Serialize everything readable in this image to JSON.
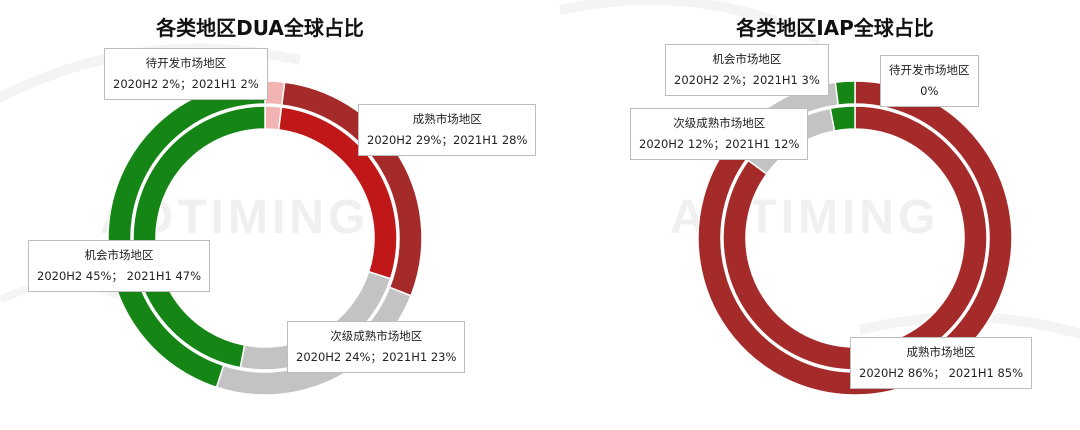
{
  "watermark": "ADTIMING",
  "chart_data": [
    {
      "type": "pie",
      "title": "各类地区DUA全球占比",
      "categories": [
        "待开发市场地区",
        "成熟市场地区",
        "次级成熟市场地区",
        "机会市场地区"
      ],
      "series": [
        {
          "name": "2020H2",
          "values": [
            2,
            29,
            24,
            45
          ]
        },
        {
          "name": "2021H1",
          "values": [
            2,
            28,
            23,
            47
          ]
        }
      ],
      "colors": {
        "待开发市场地区": [
          "#f2b3b3",
          "#f2b3b3"
        ],
        "成熟市场地区": [
          "#a52a2a",
          "#c01818"
        ],
        "次级成熟市场地区": [
          "#c3c3c3",
          "#c3c3c3"
        ],
        "机会市场地区": [
          "#158515",
          "#158515"
        ]
      },
      "labels": [
        {
          "line1": "待开发市场地区",
          "line2": "2020H2 2%；2021H1 2%"
        },
        {
          "line1": "成熟市场地区",
          "line2": "2020H2 29%；2021H1 28%"
        },
        {
          "line1": "次级成熟市场地区",
          "line2": "2020H2 24%；2021H1 23%"
        },
        {
          "line1": "机会市场地区",
          "line2": "2020H2 45%； 2021H1 47%"
        }
      ]
    },
    {
      "type": "pie",
      "title": "各类地区IAP全球占比",
      "categories": [
        "待开发市场地区",
        "成熟市场地区",
        "次级成熟市场地区",
        "机会市场地区"
      ],
      "series": [
        {
          "name": "2020H2",
          "values": [
            0,
            86,
            12,
            2
          ]
        },
        {
          "name": "2021H1",
          "values": [
            0,
            85,
            12,
            3
          ]
        }
      ],
      "colors": {
        "待开发市场地区": [
          "#f2b3b3",
          "#f2b3b3"
        ],
        "成熟市场地区": [
          "#a52a2a",
          "#a52a2a"
        ],
        "次级成熟市场地区": [
          "#c3c3c3",
          "#c3c3c3"
        ],
        "机会市场地区": [
          "#158515",
          "#158515"
        ]
      },
      "labels": [
        {
          "line1": "待开发市场地区",
          "line2": "0%"
        },
        {
          "line1": "成熟市场地区",
          "line2": "2020H2 86%； 2021H1 85%"
        },
        {
          "line1": "次级成熟市场地区",
          "line2": "2020H2 12%；2021H1 12%"
        },
        {
          "line1": "机会市场地区",
          "line2": "2020H2 2%；2021H1 3%"
        }
      ]
    }
  ]
}
